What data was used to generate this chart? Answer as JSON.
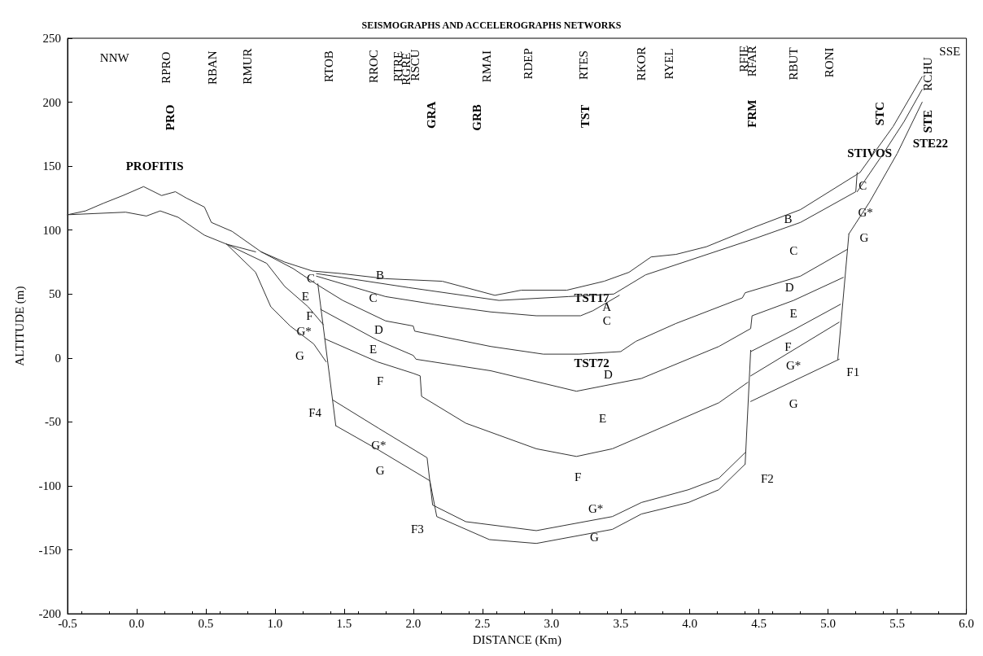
{
  "chart_data": {
    "type": "line",
    "title": "SEISMOGRAPHS AND ACCELEROGRAPHS NETWORKS",
    "xlabel": "DISTANCE (Km)",
    "ylabel": "ALTITUDE (m)",
    "xlim": [
      -0.5,
      6.0
    ],
    "ylim": [
      -200,
      250
    ],
    "xticks": [
      {
        "value": -0.5,
        "label": "-0.5"
      },
      {
        "value": 0,
        "label": "0.0"
      },
      {
        "value": 0.5,
        "label": "0.5"
      },
      {
        "value": 1,
        "label": "1.0"
      },
      {
        "value": 1.5,
        "label": "1.5"
      },
      {
        "value": 2,
        "label": "2.0"
      },
      {
        "value": 2.5,
        "label": "2.5"
      },
      {
        "value": 3,
        "label": "3.0"
      },
      {
        "value": 3.5,
        "label": "3.5"
      },
      {
        "value": 4,
        "label": "4.0"
      },
      {
        "value": 4.5,
        "label": "4.5"
      },
      {
        "value": 5,
        "label": "5.0"
      },
      {
        "value": 5.5,
        "label": "5.5"
      },
      {
        "value": 6,
        "label": "6.0"
      }
    ],
    "yticks": [
      -200,
      -150,
      -100,
      -50,
      0,
      50,
      100,
      150,
      200,
      250
    ],
    "grid": false,
    "marker": "none",
    "line_style": "solid",
    "series": [
      {
        "color": "#333333",
        "x": [
          -0.5,
          -0.37,
          -0.24,
          -0.1,
          0.05,
          0.18,
          0.28,
          0.36,
          0.49,
          0.54,
          0.69,
          0.9,
          1.07,
          1.27,
          1.48,
          1.8,
          2.21,
          2.59,
          2.78,
          3.11,
          3.38,
          3.56,
          3.72,
          3.9,
          4.12,
          4.46,
          4.8,
          5.23,
          5.47,
          5.68
        ],
        "values": [
          112,
          115,
          121,
          127,
          134,
          127,
          130,
          125,
          118,
          106,
          99,
          83,
          75,
          68,
          66,
          62,
          60,
          49,
          53,
          53,
          60,
          67,
          79,
          81,
          87,
          102,
          116,
          145,
          181,
          220
        ]
      },
      {
        "color": "#333333",
        "x": [
          -0.5,
          -0.08,
          0.07,
          0.17,
          0.3,
          0.49,
          0.65,
          0.86
        ],
        "values": [
          112,
          114,
          111,
          115,
          110,
          96,
          89,
          83
        ]
      },
      {
        "color": "#333333",
        "x": [
          0.65,
          0.94,
          1.07,
          1.24,
          1.35
        ],
        "values": [
          89,
          74,
          56,
          40,
          26
        ]
      },
      {
        "color": "#333333",
        "x": [
          0.65,
          0.86,
          0.97,
          1.11,
          1.28,
          1.37
        ],
        "values": [
          89,
          67,
          40,
          25,
          11,
          -3
        ]
      },
      {
        "color": "#333333",
        "x": [
          1.3,
          1.97,
          2.62,
          3.12,
          3.45,
          3.68,
          4.46,
          4.8,
          5.2,
          5.21
        ],
        "values": [
          66,
          55,
          45,
          48,
          50,
          65,
          93,
          106,
          130,
          145
        ]
      },
      {
        "color": "#333333",
        "x": [
          1.3,
          1.8,
          2.15,
          2.56,
          2.89,
          3.21,
          3.3,
          3.49
        ],
        "values": [
          64,
          48,
          42,
          36,
          33,
          33,
          37,
          49
        ]
      },
      {
        "color": "#333333",
        "x": [
          0.9,
          1.13,
          1.31,
          1.49,
          1.8,
          2.0,
          2.01,
          2.56,
          2.94,
          3.2,
          3.5,
          3.61,
          3.9,
          4.38,
          4.4,
          4.8,
          5.14
        ],
        "values": [
          83,
          70,
          57,
          45,
          29,
          25,
          21,
          9,
          3,
          3,
          5,
          13,
          27,
          47,
          51,
          64,
          85
        ]
      },
      {
        "color": "#333333",
        "x": [
          1.33,
          1.74,
          2.0,
          2.02,
          2.56,
          3.18,
          3.65,
          4.21,
          4.44,
          4.45,
          4.75,
          5.11
        ],
        "values": [
          38,
          14,
          2,
          -1,
          -10,
          -26,
          -16,
          9,
          23,
          33,
          45,
          63
        ]
      },
      {
        "color": "#333333",
        "x": [
          1.36,
          1.74,
          2.0,
          2.05,
          2.06,
          2.38,
          2.89,
          3.18,
          3.44,
          4.21,
          4.42
        ],
        "values": [
          15,
          -3,
          -12,
          -14,
          -30,
          -51,
          -71,
          -77,
          -71,
          -35,
          -19
        ]
      },
      {
        "color": "#333333",
        "x": [
          4.44,
          4.75,
          5.09
        ],
        "values": [
          5,
          22,
          42
        ]
      },
      {
        "color": "#333333",
        "x": [
          4.44,
          5.08
        ],
        "values": [
          -14,
          28
        ]
      },
      {
        "color": "#333333",
        "x": [
          4.44,
          5.08
        ],
        "values": [
          -34,
          -1
        ]
      },
      {
        "color": "#333333",
        "x": [
          1.31,
          1.44
        ],
        "values": [
          58,
          -53
        ]
      },
      {
        "color": "#333333",
        "x": [
          5.07,
          5.15
        ],
        "values": [
          -1,
          97
        ]
      },
      {
        "color": "#333333",
        "x": [
          4.44,
          4.4
        ],
        "values": [
          6,
          -83
        ]
      },
      {
        "color": "#333333",
        "x": [
          5.21,
          5.4,
          5.55,
          5.68
        ],
        "values": [
          130,
          160,
          185,
          210
        ]
      },
      {
        "color": "#333333",
        "x": [
          5.15,
          5.3,
          5.5,
          5.68
        ],
        "values": [
          97,
          122,
          160,
          200
        ]
      },
      {
        "color": "#333333",
        "x": [
          1.42,
          1.75,
          2.1,
          2.14,
          2.38,
          2.89,
          3.44,
          3.65,
          3.99,
          4.21,
          4.4
        ],
        "values": [
          -33,
          -55,
          -78,
          -115,
          -128,
          -135,
          -124,
          -113,
          -103,
          -94,
          -74
        ]
      },
      {
        "color": "#333333",
        "x": [
          1.44,
          1.75,
          2.12,
          2.17,
          2.55,
          2.89,
          3.44,
          3.65,
          3.99,
          4.21,
          4.4
        ],
        "values": [
          -53,
          -72,
          -96,
          -124,
          -142,
          -145,
          -134,
          -122,
          -113,
          -103,
          -83
        ]
      }
    ],
    "annotations": [
      "NNW",
      "RPRO",
      "PRO",
      "RBAN",
      "RMUR",
      "RTOB",
      "RROC",
      "RTRE",
      "RGRE",
      "RSCU",
      "GRA",
      "GRB",
      "RMAI",
      "RDEP",
      "TST",
      "RTES",
      "RKOR",
      "RYEL",
      "FRM",
      "RFIE",
      "RFAR",
      "RBUT",
      "RONI",
      "STC",
      "RCHU",
      "STE",
      "SSE",
      "STE22",
      "STIVOS",
      "PROFITIS",
      "C",
      "E",
      "F",
      "G*",
      "G",
      "B",
      "C",
      "D",
      "E",
      "F",
      "F4",
      "G*",
      "G",
      "F3",
      "A",
      "TST17",
      "C",
      "TST72",
      "D",
      "E",
      "F",
      "G*",
      "G",
      "F2",
      "B",
      "C",
      "D",
      "E",
      "F",
      "G*",
      "G",
      "F1",
      "C",
      "G*",
      "G"
    ]
  }
}
